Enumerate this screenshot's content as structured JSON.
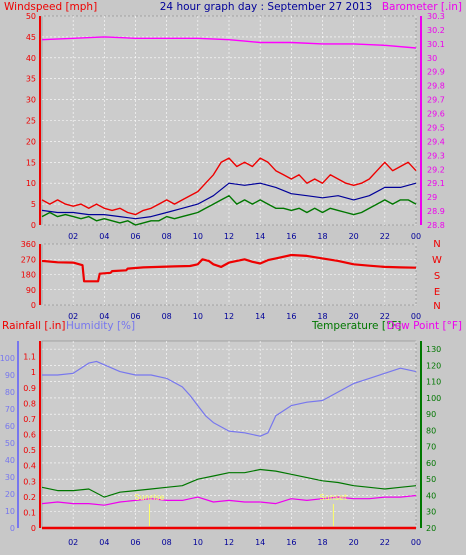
{
  "chart_data": [
    {
      "type": "line",
      "title": "24 hour graph day : September 27 2013",
      "left_label": "Windspeed [mph]",
      "right_label": "Barometer [.in]",
      "x_ticks": [
        "02",
        "04",
        "06",
        "08",
        "10",
        "12",
        "14",
        "16",
        "18",
        "20",
        "22",
        "00"
      ],
      "xlim": [
        0,
        24
      ],
      "ylim_left": [
        0,
        50
      ],
      "ylim_right": [
        28.8,
        30.3
      ],
      "y_ticks_left": [
        "0",
        "5",
        "10",
        "15",
        "20",
        "25",
        "30",
        "35",
        "40",
        "45",
        "50"
      ],
      "y_ticks_right": [
        "28.8",
        "28.9",
        "29",
        "29.1",
        "29.2",
        "29.3",
        "29.4",
        "29.5",
        "29.6",
        "29.7",
        "29.8",
        "29.9",
        "30",
        "30.1",
        "30.2",
        "30.3"
      ],
      "grid": true,
      "series": [
        {
          "color": "#ee0000",
          "axis": "left",
          "x": [
            0,
            0.5,
            1,
            1.5,
            2,
            2.5,
            3,
            3.5,
            4,
            4.5,
            5,
            5.5,
            6,
            6.5,
            7,
            7.5,
            8,
            8.5,
            9,
            9.5,
            10,
            10.5,
            11,
            11.5,
            12,
            12.5,
            13,
            13.5,
            14,
            14.5,
            15,
            15.5,
            16,
            16.5,
            17,
            17.5,
            18,
            18.5,
            19,
            19.5,
            20,
            20.5,
            21,
            21.5,
            22,
            22.5,
            23,
            23.5,
            24
          ],
          "values": [
            6,
            5,
            6,
            5,
            4.5,
            5,
            4,
            5,
            4,
            3.5,
            4,
            3,
            2.5,
            3.5,
            4,
            5,
            6,
            5,
            6,
            7,
            8,
            10,
            12,
            15,
            16,
            14,
            15,
            14,
            16,
            15,
            13,
            12,
            11,
            12,
            10,
            11,
            10,
            12,
            11,
            10,
            9.5,
            10,
            11,
            13,
            15,
            13,
            14,
            15,
            13
          ]
        },
        {
          "color": "#000099",
          "axis": "left",
          "x": [
            0,
            1,
            2,
            3,
            4,
            5,
            6,
            7,
            8,
            9,
            10,
            11,
            12,
            13,
            14,
            15,
            16,
            17,
            18,
            19,
            20,
            21,
            22,
            23,
            24
          ],
          "values": [
            3.5,
            3,
            3,
            2.5,
            2.5,
            2,
            1.5,
            2,
            3,
            4,
            5,
            7,
            10,
            9.5,
            10,
            9,
            7.5,
            7,
            6.5,
            7,
            6,
            7,
            9,
            9,
            10
          ]
        },
        {
          "color": "#007700",
          "axis": "left",
          "x": [
            0,
            0.5,
            1,
            1.5,
            2,
            2.5,
            3,
            3.5,
            4,
            4.5,
            5,
            5.5,
            6,
            6.5,
            7,
            7.5,
            8,
            8.5,
            9,
            9.5,
            10,
            10.5,
            11,
            11.5,
            12,
            12.5,
            13,
            13.5,
            14,
            14.5,
            15,
            15.5,
            16,
            16.5,
            17,
            17.5,
            18,
            18.5,
            19,
            19.5,
            20,
            20.5,
            21,
            21.5,
            22,
            22.5,
            23,
            23.5,
            24
          ],
          "values": [
            2,
            3,
            2,
            2.5,
            2,
            1.5,
            2,
            1,
            1.5,
            1,
            0.5,
            1,
            0,
            0.5,
            1,
            1,
            2,
            1.5,
            2,
            2.5,
            3,
            4,
            5,
            6,
            7,
            5,
            6,
            5,
            6,
            5,
            4,
            4,
            3.5,
            4,
            3,
            4,
            3,
            4,
            3.5,
            3,
            2.5,
            3,
            4,
            5,
            6,
            5,
            6,
            6,
            5
          ]
        },
        {
          "color": "#ff00ff",
          "axis": "right",
          "x": [
            0,
            2,
            4,
            6,
            8,
            10,
            12,
            13,
            14,
            16,
            18,
            20,
            22,
            24
          ],
          "values": [
            30.13,
            30.14,
            30.15,
            30.14,
            30.14,
            30.14,
            30.13,
            30.12,
            30.11,
            30.11,
            30.1,
            30.1,
            30.09,
            30.07
          ]
        }
      ]
    },
    {
      "type": "line",
      "y_ticks_left": [
        "0",
        "90",
        "180",
        "270",
        "360"
      ],
      "compass_labels": [
        "N",
        "W",
        "S",
        "E",
        "N"
      ],
      "ylim": [
        0,
        360
      ],
      "xlim": [
        0,
        24
      ],
      "grid": true,
      "series": [
        {
          "color": "#ee0000",
          "x": [
            0,
            1,
            2,
            2.6,
            2.7,
            3.6,
            3.7,
            4.4,
            4.5,
            5.4,
            5.5,
            6.5,
            7.5,
            8.5,
            9.5,
            10,
            10.3,
            10.7,
            11,
            11.5,
            12,
            13,
            13.5,
            14,
            14.5,
            15,
            16,
            17,
            18,
            19,
            20,
            21,
            22,
            23,
            24
          ],
          "values": [
            260,
            252,
            250,
            235,
            140,
            140,
            185,
            190,
            200,
            205,
            215,
            222,
            225,
            228,
            230,
            240,
            270,
            260,
            240,
            225,
            250,
            270,
            255,
            245,
            265,
            275,
            295,
            290,
            275,
            260,
            240,
            232,
            225,
            222,
            220
          ]
        }
      ]
    },
    {
      "type": "line",
      "left_label_1": "Rainfall [.in]",
      "left_label_2": "Humidity [%]",
      "right_label_1": "Temperature [°F]",
      "right_label_2": "Dew Point [°F]",
      "rain_ticks": [
        "0",
        "0.1",
        "0.2",
        "0.3",
        "0.4",
        "0.5",
        "0.6",
        "0.7",
        "0.8",
        "0.9",
        "1",
        "1.1"
      ],
      "humidity_ticks": [
        "0",
        "10",
        "20",
        "30",
        "40",
        "50",
        "60",
        "70",
        "80",
        "90",
        "100"
      ],
      "temp_ticks": [
        "20",
        "30",
        "40",
        "50",
        "60",
        "70",
        "80",
        "90",
        "100",
        "110",
        "120",
        "130"
      ],
      "ylim_rain": [
        0,
        1.2
      ],
      "ylim_humidity": [
        0,
        110
      ],
      "ylim_temp": [
        20,
        135
      ],
      "xlim": [
        0,
        24
      ],
      "grid": true,
      "annotations": [
        {
          "label": "Sunrise",
          "x": 6.9
        },
        {
          "label": "Sunset",
          "x": 18.7
        }
      ],
      "series": [
        {
          "color": "#7777ee",
          "axis": "humidity",
          "x": [
            0,
            1,
            2,
            3,
            3.5,
            4,
            5,
            6,
            7,
            8,
            9,
            9.5,
            10,
            10.5,
            11,
            12,
            13,
            14,
            14.5,
            15,
            16,
            17,
            18,
            19,
            20,
            21,
            22,
            23,
            24
          ],
          "values": [
            90,
            90,
            91,
            97,
            98,
            96,
            92,
            90,
            90,
            88,
            83,
            78,
            72,
            66,
            62,
            57,
            56,
            54,
            56,
            66,
            72,
            74,
            75,
            80,
            85,
            88,
            91,
            94,
            92
          ]
        },
        {
          "color": "#007700",
          "axis": "temp",
          "x": [
            0,
            1,
            2,
            3,
            4,
            5,
            6,
            7,
            8,
            9,
            10,
            11,
            12,
            13,
            14,
            15,
            16,
            17,
            18,
            19,
            20,
            21,
            22,
            23,
            24
          ],
          "values": [
            45,
            43,
            43,
            44,
            39,
            42,
            43,
            44,
            45,
            46,
            50,
            52,
            54,
            54,
            56,
            55,
            53,
            51,
            49,
            48,
            46,
            45,
            44,
            45,
            46
          ]
        },
        {
          "color": "#ee00ee",
          "axis": "temp",
          "x": [
            0,
            1,
            2,
            3,
            4,
            5,
            6,
            7,
            8,
            9,
            10,
            11,
            12,
            13,
            14,
            15,
            16,
            17,
            18,
            19,
            20,
            21,
            22,
            23,
            24
          ],
          "values": [
            35,
            36,
            35,
            35,
            34,
            36,
            37,
            38,
            37,
            37,
            39,
            36,
            37,
            36,
            36,
            35,
            38,
            37,
            38,
            39,
            38,
            38,
            39,
            39,
            40
          ]
        },
        {
          "color": "#ee0000",
          "axis": "rain",
          "x": [
            0,
            24
          ],
          "values": [
            0,
            0
          ]
        }
      ]
    }
  ]
}
